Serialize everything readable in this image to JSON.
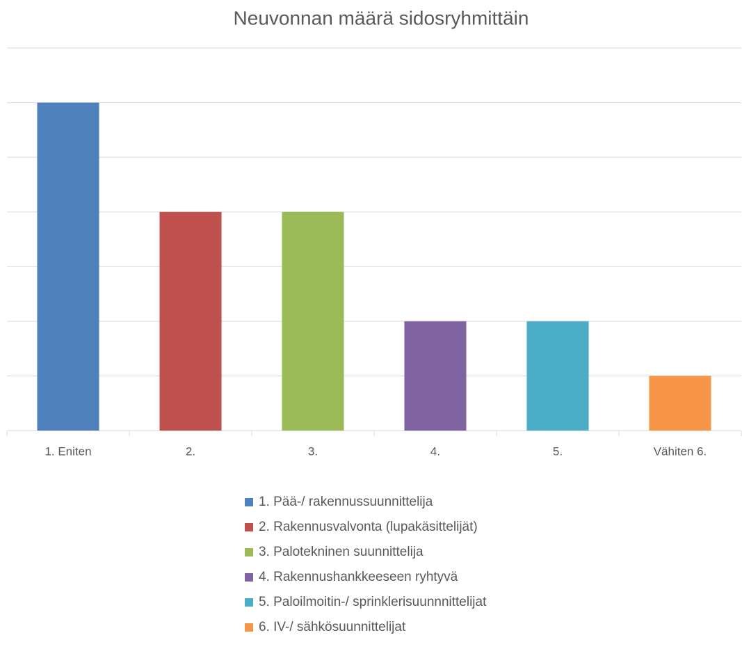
{
  "chart_data": {
    "type": "bar",
    "title": "Neuvonnan määrä sidosryhmittäin",
    "categories": [
      "1. Eniten",
      "2.",
      "3.",
      "4.",
      "5.",
      "Vähiten 6."
    ],
    "values": [
      6,
      4,
      4,
      2,
      2,
      1
    ],
    "colors": [
      "#4f81bd",
      "#c0504d",
      "#9bbb59",
      "#8064a2",
      "#4bacc6",
      "#f79646"
    ],
    "legend": [
      "1. Pää-/ rakennussuunnittelija",
      "2. Rakennusvalvonta (lupakäsittelijät)",
      "3. Palotekninen suunnittelija",
      "4. Rakennushankkeeseen ryhtyvä",
      "5. Paloilmoitin-/ sprinklerisuunnnittelijat",
      "6. IV-/ sähkösuunnittelijat"
    ],
    "ylim": [
      0,
      7
    ],
    "yticks": [
      0,
      1,
      2,
      3,
      4,
      5,
      6,
      7
    ],
    "grid": true
  }
}
